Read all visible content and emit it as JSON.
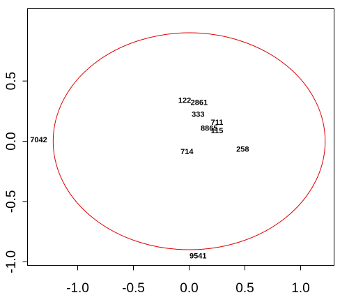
{
  "chart_data": {
    "type": "scatter",
    "title": "",
    "xlabel": "",
    "ylabel": "",
    "xlim": [
      -1.45,
      1.3
    ],
    "ylim": [
      -1.03,
      1.1
    ],
    "x_ticks": [
      -1.0,
      -0.5,
      0.0,
      0.5,
      1.0
    ],
    "x_tick_labels": [
      "-1.0",
      "-0.5",
      "0.0",
      "0.5",
      "1.0"
    ],
    "y_ticks": [
      -1.0,
      -0.5,
      0.0,
      0.5
    ],
    "y_tick_labels": [
      "-1.0",
      "-0.5",
      "0.0",
      "0.5"
    ],
    "grid": false,
    "legend": "none",
    "ellipse": {
      "center": [
        0.0,
        0.0
      ],
      "rx": 1.22,
      "ry": 0.9,
      "color": "#dd0000"
    },
    "points": [
      {
        "label": "122",
        "x": -0.04,
        "y": 0.335
      },
      {
        "label": "2861",
        "x": 0.09,
        "y": 0.32
      },
      {
        "label": "333",
        "x": 0.08,
        "y": 0.22
      },
      {
        "label": "711",
        "x": 0.25,
        "y": 0.155
      },
      {
        "label": "8865",
        "x": 0.18,
        "y": 0.105
      },
      {
        "label": "115",
        "x": 0.25,
        "y": 0.085
      },
      {
        "label": "7042",
        "x": -1.35,
        "y": 0.01
      },
      {
        "label": "258",
        "x": 0.48,
        "y": -0.07
      },
      {
        "label": "714",
        "x": -0.02,
        "y": -0.09
      },
      {
        "label": "9541",
        "x": 0.08,
        "y": -0.955
      }
    ]
  }
}
